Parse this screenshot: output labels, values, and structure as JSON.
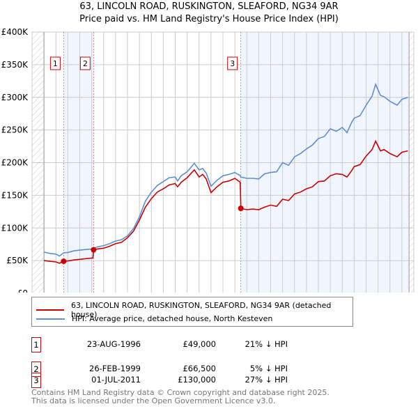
{
  "title": "63, LINCOLN ROAD, RUSKINGTON, SLEAFORD, NG34 9AR",
  "subtitle": "Price paid vs. HM Land Registry's House Price Index (HPI)",
  "chart_data": {
    "type": "line",
    "xlim": [
      1994,
      2026
    ],
    "ylim": [
      0,
      400000
    ],
    "x_ticks": [
      "1994",
      "1995",
      "1996",
      "1997",
      "1998",
      "1999",
      "2000",
      "2001",
      "2002",
      "2003",
      "2004",
      "2005",
      "2006",
      "2007",
      "2008",
      "2009",
      "2010",
      "2011",
      "2012",
      "2013",
      "2014",
      "2015",
      "2016",
      "2017",
      "2018",
      "2019",
      "2020",
      "2021",
      "2022",
      "2023",
      "2024",
      "2025",
      "2026"
    ],
    "y_ticks": [
      {
        "v": 0,
        "label": "£0"
      },
      {
        "v": 50000,
        "label": "£50K"
      },
      {
        "v": 100000,
        "label": "£100K"
      },
      {
        "v": 150000,
        "label": "£150K"
      },
      {
        "v": 200000,
        "label": "£200K"
      },
      {
        "v": 250000,
        "label": "£250K"
      },
      {
        "v": 300000,
        "label": "£300K"
      },
      {
        "v": 350000,
        "label": "£350K"
      },
      {
        "v": 400000,
        "label": "£400K"
      }
    ],
    "grid": true,
    "legend_position": "below",
    "series": [
      {
        "name": "63, LINCOLN ROAD, RUSKINGTON, SLEAFORD, NG34 9AR (detached house)",
        "color": "#cc0000",
        "x": [
          1995,
          1995.5,
          1996,
          1996.3,
          1996.65,
          1997,
          1997.5,
          1998,
          1998.5,
          1999.1,
          1999.16,
          1999.5,
          2000,
          2000.5,
          2001,
          2001.5,
          2002,
          2002.5,
          2003,
          2003.5,
          2004,
          2004.5,
          2005,
          2005.5,
          2006,
          2006.2,
          2006.5,
          2007,
          2007.6,
          2008,
          2008.3,
          2008.6,
          2009,
          2009.5,
          2010,
          2010.5,
          2011,
          2011.45,
          2011.5,
          2012,
          2012.5,
          2013,
          2013.5,
          2014,
          2014.5,
          2015,
          2015.5,
          2016,
          2016.5,
          2017,
          2017.5,
          2018,
          2018.5,
          2019,
          2019.5,
          2020,
          2020.4,
          2020.8,
          2021,
          2021.5,
          2022,
          2022.5,
          2022.8,
          2023.2,
          2023.5,
          2024,
          2024.6,
          2025,
          2025.5
        ],
        "y": [
          50000,
          49000,
          48000,
          46000,
          49000,
          49500,
          51000,
          52000,
          53000,
          54000,
          66500,
          68000,
          69000,
          72000,
          76000,
          78000,
          85000,
          95000,
          112000,
          132000,
          145000,
          155000,
          160000,
          166000,
          168000,
          163000,
          170000,
          177000,
          189000,
          178000,
          182000,
          175000,
          154000,
          163000,
          170000,
          172000,
          176000,
          170000,
          130000,
          128000,
          129000,
          128000,
          132000,
          135000,
          133000,
          144000,
          142000,
          152000,
          155000,
          160000,
          163000,
          171000,
          172000,
          180000,
          183000,
          182000,
          178000,
          188000,
          194000,
          197000,
          210000,
          220000,
          233000,
          218000,
          220000,
          214000,
          209000,
          216000,
          218000
        ]
      },
      {
        "name": "HPI: Average price, detached house, North Kesteven",
        "color": "#5b8fd6",
        "x": [
          1995,
          1995.5,
          1996,
          1996.3,
          1996.65,
          1997,
          1997.5,
          1998,
          1998.5,
          1999.1,
          1999.16,
          1999.5,
          2000,
          2000.5,
          2001,
          2001.5,
          2002,
          2002.5,
          2003,
          2003.5,
          2004,
          2004.5,
          2005,
          2005.5,
          2006,
          2006.2,
          2006.5,
          2007,
          2007.6,
          2008,
          2008.3,
          2008.6,
          2009,
          2009.5,
          2010,
          2010.5,
          2011,
          2011.45,
          2011.5,
          2012,
          2012.5,
          2013,
          2013.5,
          2014,
          2014.5,
          2015,
          2015.5,
          2016,
          2016.5,
          2017,
          2017.5,
          2018,
          2018.5,
          2019,
          2019.5,
          2020,
          2020.4,
          2020.8,
          2021,
          2021.5,
          2022,
          2022.5,
          2022.8,
          2023.2,
          2023.5,
          2024,
          2024.6,
          2025,
          2025.5
        ],
        "y": [
          63000,
          61000,
          60000,
          57000,
          62000,
          62500,
          65000,
          66000,
          67000,
          68000,
          69000,
          71000,
          73000,
          76000,
          80000,
          82000,
          88000,
          99000,
          117000,
          141000,
          155000,
          165000,
          171000,
          177000,
          178000,
          172000,
          180000,
          186000,
          199000,
          189000,
          191000,
          184000,
          164000,
          173000,
          180000,
          182000,
          185000,
          180000,
          178000,
          176000,
          176000,
          175000,
          183000,
          185000,
          186000,
          200000,
          196000,
          209000,
          214000,
          221000,
          227000,
          237000,
          240000,
          252000,
          248000,
          254000,
          246000,
          262000,
          268000,
          272000,
          288000,
          302000,
          320000,
          303000,
          301000,
          294000,
          288000,
          297000,
          300000
        ]
      }
    ],
    "sales": [
      {
        "label": "1",
        "x": 1996.65,
        "y": 49000
      },
      {
        "label": "2",
        "x": 1999.16,
        "y": 66500
      },
      {
        "label": "3",
        "x": 2011.5,
        "y": 130000
      }
    ]
  },
  "legend": {
    "property": "63, LINCOLN ROAD, RUSKINGTON, SLEAFORD, NG34 9AR (detached house)",
    "hpi": "HPI: Average price, detached house, North Kesteven"
  },
  "transactions": [
    {
      "num": "1",
      "date": "23-AUG-1996",
      "price": "£49,000",
      "hpi": "21% ↓ HPI"
    },
    {
      "num": "2",
      "date": "26-FEB-1999",
      "price": "£66,500",
      "hpi": "5% ↓ HPI"
    },
    {
      "num": "3",
      "date": "01-JUL-2011",
      "price": "£130,000",
      "hpi": "27% ↓ HPI"
    }
  ],
  "footer": {
    "line1": "Contains HM Land Registry data © Crown copyright and database right 2025.",
    "line2": "This data is licensed under the Open Government Licence v3.0."
  }
}
